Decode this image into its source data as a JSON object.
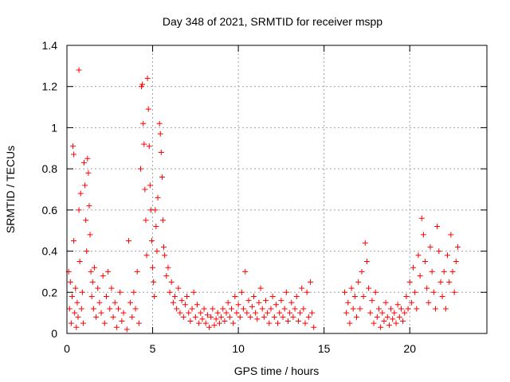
{
  "chart_data": {
    "type": "scatter",
    "title": "Day 348 of 2021, SRMTID for receiver mspp",
    "xlabel": "GPS time / hours",
    "ylabel": "SRMTID / TECUs",
    "xlim": [
      0,
      24.5
    ],
    "ylim": [
      0,
      1.4
    ],
    "xticks": [
      0,
      5,
      10,
      15,
      20
    ],
    "yticks": [
      0,
      0.2,
      0.4,
      0.6,
      0.8,
      1.0,
      1.2,
      1.4
    ],
    "xtick_labels": [
      "0",
      "5",
      "10",
      "15",
      "20"
    ],
    "ytick_labels": [
      "0",
      "0.2",
      "0.4",
      "0.6",
      "0.8",
      "1",
      "1.2",
      "1.4"
    ],
    "grid": true,
    "marker": "+",
    "marker_color": "#ff0000",
    "series": [
      {
        "name": "SRMTID",
        "points": [
          [
            0.1,
            0.3
          ],
          [
            0.15,
            0.12
          ],
          [
            0.2,
            0.25
          ],
          [
            0.25,
            0.05
          ],
          [
            0.3,
            0.18
          ],
          [
            0.35,
            0.91
          ],
          [
            0.4,
            0.87
          ],
          [
            0.4,
            0.45
          ],
          [
            0.45,
            0.1
          ],
          [
            0.5,
            0.22
          ],
          [
            0.55,
            0.03
          ],
          [
            0.6,
            0.15
          ],
          [
            0.65,
            0.08
          ],
          [
            0.7,
            1.28
          ],
          [
            0.7,
            0.6
          ],
          [
            0.75,
            0.35
          ],
          [
            0.8,
            0.68
          ],
          [
            0.85,
            0.12
          ],
          [
            0.9,
            0.2
          ],
          [
            0.95,
            0.05
          ],
          [
            1.0,
            0.83
          ],
          [
            1.05,
            0.72
          ],
          [
            1.1,
            0.55
          ],
          [
            1.15,
            0.4
          ],
          [
            1.2,
            0.85
          ],
          [
            1.25,
            0.78
          ],
          [
            1.3,
            0.62
          ],
          [
            1.35,
            0.48
          ],
          [
            1.4,
            0.3
          ],
          [
            1.45,
            0.18
          ],
          [
            1.5,
            0.25
          ],
          [
            1.55,
            0.12
          ],
          [
            1.6,
            0.32
          ],
          [
            1.7,
            0.08
          ],
          [
            1.8,
            0.22
          ],
          [
            1.9,
            0.15
          ],
          [
            2.0,
            0.1
          ],
          [
            2.1,
            0.28
          ],
          [
            2.2,
            0.05
          ],
          [
            2.3,
            0.18
          ],
          [
            2.4,
            0.3
          ],
          [
            2.5,
            0.12
          ],
          [
            2.6,
            0.22
          ],
          [
            2.7,
            0.08
          ],
          [
            2.8,
            0.15
          ],
          [
            2.9,
            0.03
          ],
          [
            3.0,
            0.12
          ],
          [
            3.1,
            0.2
          ],
          [
            3.2,
            0.06
          ],
          [
            3.3,
            0.1
          ],
          [
            3.5,
            0.02
          ],
          [
            3.6,
            0.45
          ],
          [
            3.7,
            0.15
          ],
          [
            3.8,
            0.08
          ],
          [
            3.9,
            0.2
          ],
          [
            4.0,
            0.12
          ],
          [
            4.1,
            0.3
          ],
          [
            4.2,
            0.05
          ],
          [
            4.3,
            0.8
          ],
          [
            4.35,
            1.2
          ],
          [
            4.4,
            1.21
          ],
          [
            4.45,
            1.02
          ],
          [
            4.5,
            0.92
          ],
          [
            4.55,
            0.7
          ],
          [
            4.6,
            0.55
          ],
          [
            4.65,
            0.38
          ],
          [
            4.7,
            1.24
          ],
          [
            4.75,
            1.09
          ],
          [
            4.8,
            0.91
          ],
          [
            4.85,
            0.72
          ],
          [
            4.9,
            0.6
          ],
          [
            4.95,
            0.45
          ],
          [
            5.0,
            0.32
          ],
          [
            5.05,
            0.25
          ],
          [
            5.1,
            0.18
          ],
          [
            5.15,
            0.6
          ],
          [
            5.2,
            0.52
          ],
          [
            5.25,
            0.4
          ],
          [
            5.3,
            0.66
          ],
          [
            5.4,
            1.02
          ],
          [
            5.45,
            0.97
          ],
          [
            5.5,
            0.88
          ],
          [
            5.55,
            0.76
          ],
          [
            5.6,
            0.55
          ],
          [
            5.65,
            0.42
          ],
          [
            5.7,
            0.38
          ],
          [
            5.8,
            0.28
          ],
          [
            5.9,
            0.32
          ],
          [
            6.0,
            0.2
          ],
          [
            6.1,
            0.25
          ],
          [
            6.2,
            0.15
          ],
          [
            6.3,
            0.18
          ],
          [
            6.4,
            0.12
          ],
          [
            6.5,
            0.22
          ],
          [
            6.6,
            0.1
          ],
          [
            6.7,
            0.16
          ],
          [
            6.8,
            0.08
          ],
          [
            6.9,
            0.14
          ],
          [
            7.0,
            0.18
          ],
          [
            7.1,
            0.1
          ],
          [
            7.2,
            0.06
          ],
          [
            7.3,
            0.12
          ],
          [
            7.4,
            0.2
          ],
          [
            7.5,
            0.08
          ],
          [
            7.6,
            0.14
          ],
          [
            7.7,
            0.05
          ],
          [
            7.8,
            0.1
          ],
          [
            7.9,
            0.07
          ],
          [
            8.0,
            0.12
          ],
          [
            8.1,
            0.05
          ],
          [
            8.2,
            0.09
          ],
          [
            8.3,
            0.03
          ],
          [
            8.4,
            0.08
          ],
          [
            8.5,
            0.12
          ],
          [
            8.6,
            0.04
          ],
          [
            8.7,
            0.07
          ],
          [
            8.8,
            0.1
          ],
          [
            8.9,
            0.05
          ],
          [
            9.0,
            0.08
          ],
          [
            9.1,
            0.12
          ],
          [
            9.2,
            0.06
          ],
          [
            9.3,
            0.1
          ],
          [
            9.4,
            0.15
          ],
          [
            9.5,
            0.08
          ],
          [
            9.6,
            0.12
          ],
          [
            9.7,
            0.05
          ],
          [
            9.8,
            0.18
          ],
          [
            9.9,
            0.1
          ],
          [
            10.0,
            0.14
          ],
          [
            10.1,
            0.08
          ],
          [
            10.2,
            0.2
          ],
          [
            10.3,
            0.12
          ],
          [
            10.4,
            0.3
          ],
          [
            10.5,
            0.1
          ],
          [
            10.6,
            0.16
          ],
          [
            10.7,
            0.08
          ],
          [
            10.8,
            0.13
          ],
          [
            10.9,
            0.18
          ],
          [
            11.0,
            0.1
          ],
          [
            11.1,
            0.07
          ],
          [
            11.2,
            0.15
          ],
          [
            11.3,
            0.22
          ],
          [
            11.4,
            0.12
          ],
          [
            11.5,
            0.08
          ],
          [
            11.6,
            0.16
          ],
          [
            11.7,
            0.1
          ],
          [
            11.8,
            0.05
          ],
          [
            11.9,
            0.12
          ],
          [
            12.0,
            0.18
          ],
          [
            12.1,
            0.08
          ],
          [
            12.2,
            0.14
          ],
          [
            12.3,
            0.05
          ],
          [
            12.4,
            0.1
          ],
          [
            12.5,
            0.16
          ],
          [
            12.6,
            0.08
          ],
          [
            12.7,
            0.12
          ],
          [
            12.8,
            0.2
          ],
          [
            12.9,
            0.06
          ],
          [
            13.0,
            0.1
          ],
          [
            13.1,
            0.15
          ],
          [
            13.2,
            0.08
          ],
          [
            13.3,
            0.12
          ],
          [
            13.4,
            0.18
          ],
          [
            13.5,
            0.06
          ],
          [
            13.6,
            0.1
          ],
          [
            13.7,
            0.22
          ],
          [
            13.8,
            0.12
          ],
          [
            13.9,
            0.05
          ],
          [
            14.0,
            0.2
          ],
          [
            14.1,
            0.08
          ],
          [
            14.2,
            0.25
          ],
          [
            14.3,
            0.1
          ],
          [
            14.4,
            0.03
          ],
          [
            16.2,
            0.2
          ],
          [
            16.3,
            0.1
          ],
          [
            16.4,
            0.15
          ],
          [
            16.5,
            0.05
          ],
          [
            16.6,
            0.22
          ],
          [
            16.7,
            0.12
          ],
          [
            16.8,
            0.18
          ],
          [
            16.9,
            0.08
          ],
          [
            17.0,
            0.25
          ],
          [
            17.1,
            0.12
          ],
          [
            17.2,
            0.3
          ],
          [
            17.3,
            0.18
          ],
          [
            17.4,
            0.44
          ],
          [
            17.5,
            0.35
          ],
          [
            17.6,
            0.22
          ],
          [
            17.7,
            0.1
          ],
          [
            17.8,
            0.16
          ],
          [
            17.9,
            0.05
          ],
          [
            18.0,
            0.2
          ],
          [
            18.1,
            0.08
          ],
          [
            18.2,
            0.12
          ],
          [
            18.3,
            0.03
          ],
          [
            18.4,
            0.1
          ],
          [
            18.5,
            0.06
          ],
          [
            18.6,
            0.15
          ],
          [
            18.7,
            0.08
          ],
          [
            18.8,
            0.04
          ],
          [
            18.9,
            0.12
          ],
          [
            19.0,
            0.07
          ],
          [
            19.1,
            0.1
          ],
          [
            19.2,
            0.05
          ],
          [
            19.3,
            0.14
          ],
          [
            19.4,
            0.08
          ],
          [
            19.5,
            0.12
          ],
          [
            19.6,
            0.06
          ],
          [
            19.7,
            0.1
          ],
          [
            19.8,
            0.18
          ],
          [
            19.9,
            0.12
          ],
          [
            20.0,
            0.25
          ],
          [
            20.1,
            0.15
          ],
          [
            20.2,
            0.32
          ],
          [
            20.3,
            0.2
          ],
          [
            20.4,
            0.12
          ],
          [
            20.5,
            0.38
          ],
          [
            20.6,
            0.28
          ],
          [
            20.7,
            0.56
          ],
          [
            20.8,
            0.48
          ],
          [
            20.9,
            0.35
          ],
          [
            21.0,
            0.22
          ],
          [
            21.1,
            0.15
          ],
          [
            21.2,
            0.42
          ],
          [
            21.3,
            0.3
          ],
          [
            21.4,
            0.2
          ],
          [
            21.5,
            0.12
          ],
          [
            21.6,
            0.52
          ],
          [
            21.7,
            0.4
          ],
          [
            21.8,
            0.25
          ],
          [
            21.9,
            0.18
          ],
          [
            22.0,
            0.3
          ],
          [
            22.1,
            0.12
          ],
          [
            22.2,
            0.38
          ],
          [
            22.3,
            0.25
          ],
          [
            22.4,
            0.48
          ],
          [
            22.5,
            0.3
          ],
          [
            22.6,
            0.2
          ],
          [
            22.7,
            0.35
          ],
          [
            22.8,
            0.42
          ]
        ]
      }
    ]
  }
}
